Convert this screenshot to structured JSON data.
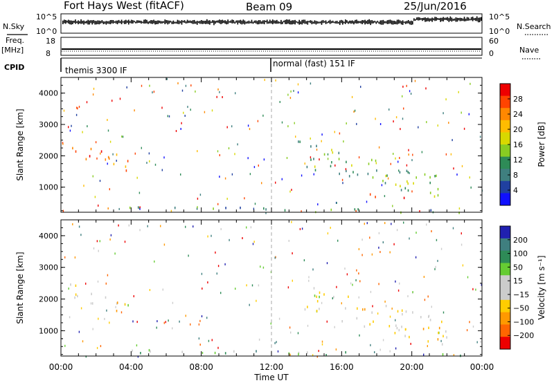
{
  "header": {
    "station": "Fort Hays West (fitACF)",
    "beam": "Beam 09",
    "date": "25/Jun/2016"
  },
  "top_panels": {
    "nsky_label": "N.Sky",
    "nsky_ticks": [
      "10^5",
      "10^0"
    ],
    "nsearch_label": "N.Search",
    "nsearch_ticks": [
      "10^5",
      "10^0"
    ],
    "freq_label": "Freq.",
    "freq_unit": "[MHz]",
    "freq_ticks": [
      "18",
      "8"
    ],
    "nave_label": "Nave",
    "nave_ticks": [
      "60",
      "0"
    ],
    "cpid_label": "CPID",
    "cpid_modes": [
      "themis 3300 IF",
      "normal (fast) 151 IF"
    ]
  },
  "chart_data": [
    {
      "type": "heatmap",
      "panel": "power",
      "ylabel": "Slant Range [km]",
      "xlabel": "",
      "yticks": [
        1000,
        2000,
        3000,
        4000
      ],
      "ylim": [
        200,
        4500
      ],
      "xlim": [
        0,
        24
      ],
      "colorbar_label": "Power [dB]",
      "colorbar_ticks": [
        "28",
        "24",
        "20",
        "16",
        "12",
        "8",
        "4"
      ],
      "colors": [
        "#ee0000",
        "#ff4400",
        "#ff8800",
        "#ffbb00",
        "#d8d800",
        "#88cc22",
        "#2e8b57",
        "#3f7f7f",
        "#2040a0",
        "#1010ff"
      ],
      "regions": [
        {
          "t": [
            0.3,
            4.1
          ],
          "r": [
            1500,
            2600
          ],
          "level": 0.75
        },
        {
          "t": [
            13.5,
            22.0
          ],
          "r": [
            600,
            2500
          ],
          "level": 0.4
        },
        {
          "t": [
            17.0,
            20.0
          ],
          "r": [
            600,
            900
          ],
          "level": 0.85
        },
        {
          "t": [
            3.5,
            24.0
          ],
          "r": [
            200,
            450
          ],
          "level": 0.3
        }
      ]
    },
    {
      "type": "heatmap",
      "panel": "velocity",
      "ylabel": "Slant Range [km]",
      "xlabel": "Time UT",
      "xticks": [
        "00:00",
        "04:00",
        "08:00",
        "12:00",
        "16:00",
        "20:00",
        "00:00"
      ],
      "yticks": [
        1000,
        2000,
        3000,
        4000
      ],
      "ylim": [
        200,
        4500
      ],
      "xlim": [
        0,
        24
      ],
      "colorbar_label": "Velocity [m s⁻¹]",
      "colorbar_ticks": [
        "200",
        "100",
        "50",
        "15",
        "−15",
        "−50",
        "−100",
        "−200"
      ],
      "colors": [
        "#2020b0",
        "#3f7f7f",
        "#2e8b57",
        "#66cc33",
        "#cccccc",
        "#cccccc",
        "#ffcc00",
        "#ff9900",
        "#ff6600",
        "#ee0000"
      ],
      "regions": [
        {
          "t": [
            0.3,
            4.1
          ],
          "r": [
            1500,
            2600
          ],
          "level": 0.45
        },
        {
          "t": [
            13.5,
            22.0
          ],
          "r": [
            600,
            2500
          ],
          "level": 0.45
        },
        {
          "t": [
            3.5,
            24.0
          ],
          "r": [
            200,
            450
          ],
          "level": 0.65
        }
      ]
    }
  ]
}
